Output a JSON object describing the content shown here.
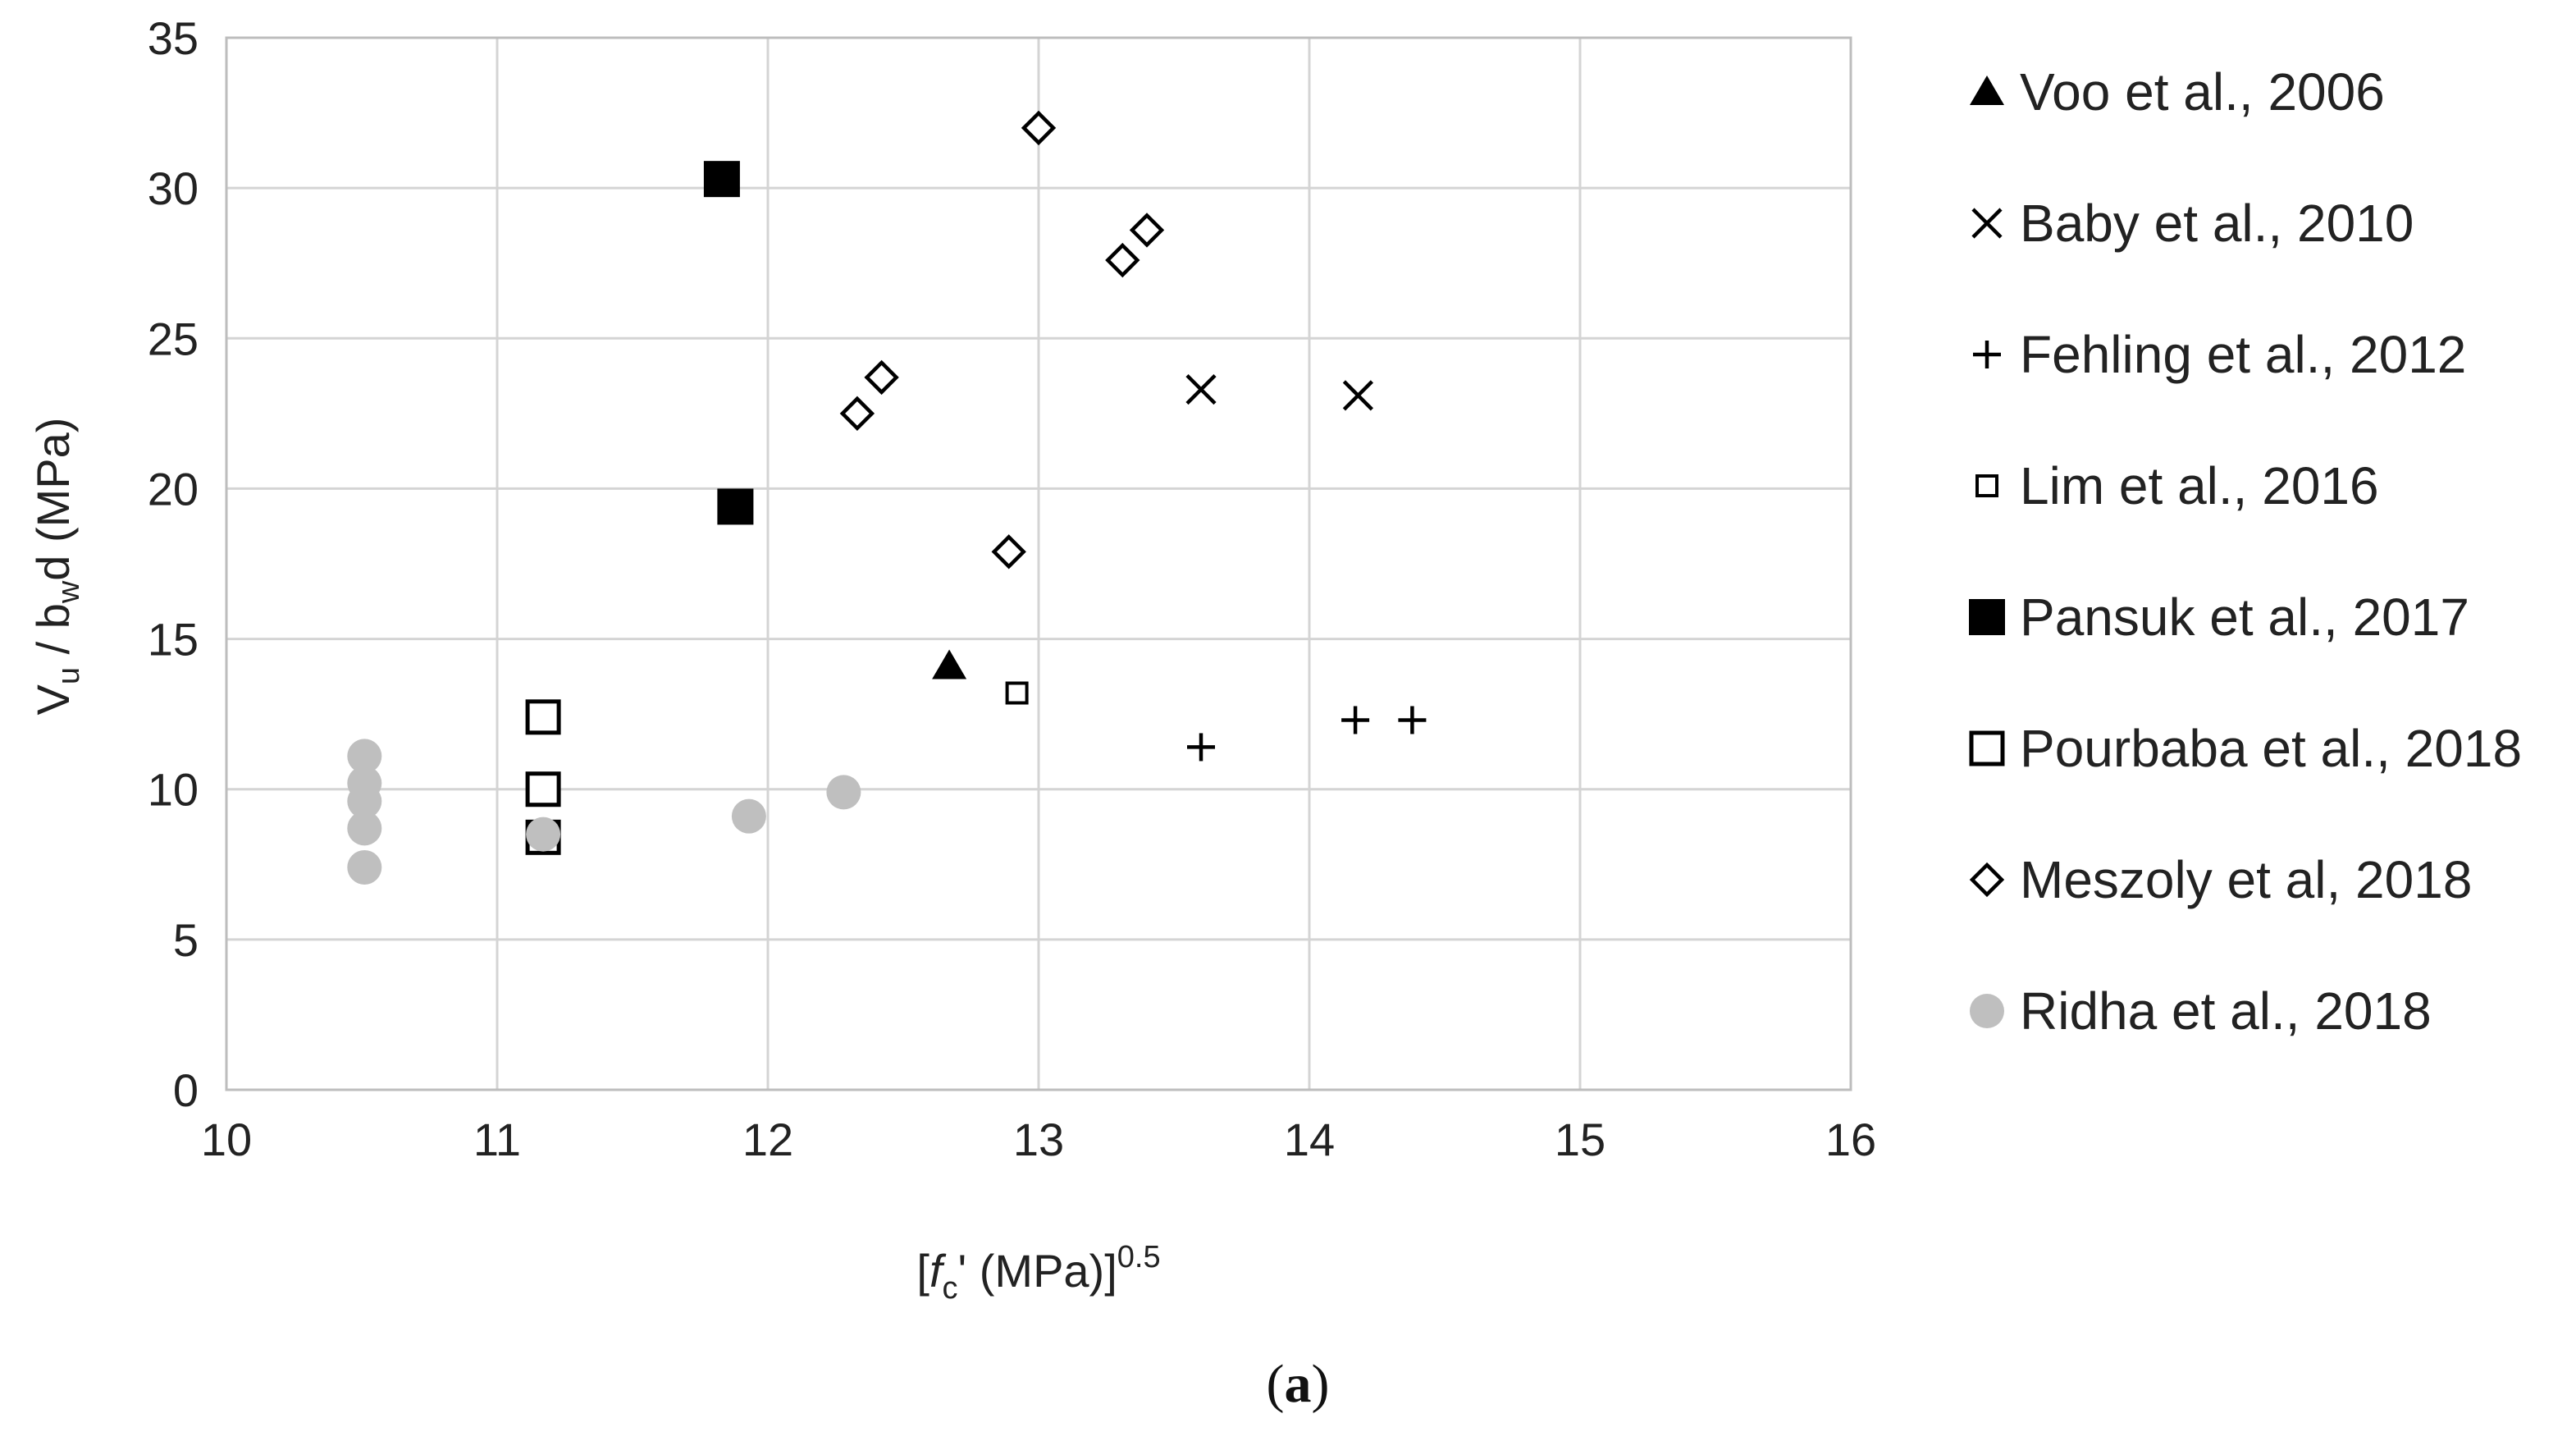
{
  "chart_data": {
    "type": "scatter",
    "xlabel": {
      "pre": "[",
      "italic": "f",
      "sub": "c",
      "post": "' (MPa)]",
      "sup": "0.5"
    },
    "ylabel": {
      "a": "V",
      "a_sub": "u",
      "b": " / b",
      "b_sub": "w",
      "c": "d (MPa)"
    },
    "xlim": [
      10,
      16
    ],
    "ylim": [
      0,
      35
    ],
    "xticks": [
      "10",
      "11",
      "12",
      "13",
      "14",
      "15",
      "16"
    ],
    "yticks": [
      "0",
      "5",
      "10",
      "15",
      "20",
      "25",
      "30",
      "35"
    ],
    "grid": true,
    "legend_position": "right",
    "caption": {
      "open": "(",
      "letter": "a",
      "close": ")"
    },
    "series": [
      {
        "name": "Voo et al., 2006",
        "marker": "triangle-filled",
        "color": "#000000",
        "points": [
          [
            12.67,
            14.1
          ]
        ]
      },
      {
        "name": "Baby et al., 2010",
        "marker": "x",
        "color": "#000000",
        "points": [
          [
            13.6,
            23.3
          ],
          [
            14.18,
            23.1
          ]
        ]
      },
      {
        "name": "Fehling et al., 2012",
        "marker": "plus",
        "color": "#000000",
        "points": [
          [
            13.6,
            11.4
          ],
          [
            14.17,
            12.3
          ],
          [
            14.38,
            12.3
          ]
        ]
      },
      {
        "name": "Lim et al., 2016",
        "marker": "square-open-small",
        "color": "#000000",
        "points": [
          [
            12.92,
            13.2
          ]
        ]
      },
      {
        "name": "Pansuk et al., 2017",
        "marker": "square-filled",
        "color": "#000000",
        "points": [
          [
            11.83,
            30.3
          ],
          [
            11.88,
            19.4
          ]
        ]
      },
      {
        "name": "Pourbaba et al., 2018",
        "marker": "square-open",
        "color": "#000000",
        "points": [
          [
            11.17,
            12.4
          ],
          [
            11.17,
            10.0
          ],
          [
            11.17,
            8.4
          ]
        ]
      },
      {
        "name": "Meszoly et al, 2018",
        "marker": "diamond-open",
        "color": "#000000",
        "points": [
          [
            13.0,
            32.0
          ],
          [
            13.31,
            27.6
          ],
          [
            13.4,
            28.6
          ],
          [
            12.33,
            22.5
          ],
          [
            12.42,
            23.7
          ],
          [
            12.89,
            17.9
          ]
        ]
      },
      {
        "name": "Ridha et al., 2018",
        "marker": "circle-filled",
        "color": "#bfbfbf",
        "points": [
          [
            10.51,
            11.1
          ],
          [
            10.51,
            10.2
          ],
          [
            10.51,
            9.6
          ],
          [
            10.51,
            8.7
          ],
          [
            10.51,
            7.4
          ],
          [
            11.17,
            8.5
          ],
          [
            11.93,
            9.1
          ],
          [
            12.28,
            9.9
          ]
        ]
      }
    ]
  }
}
